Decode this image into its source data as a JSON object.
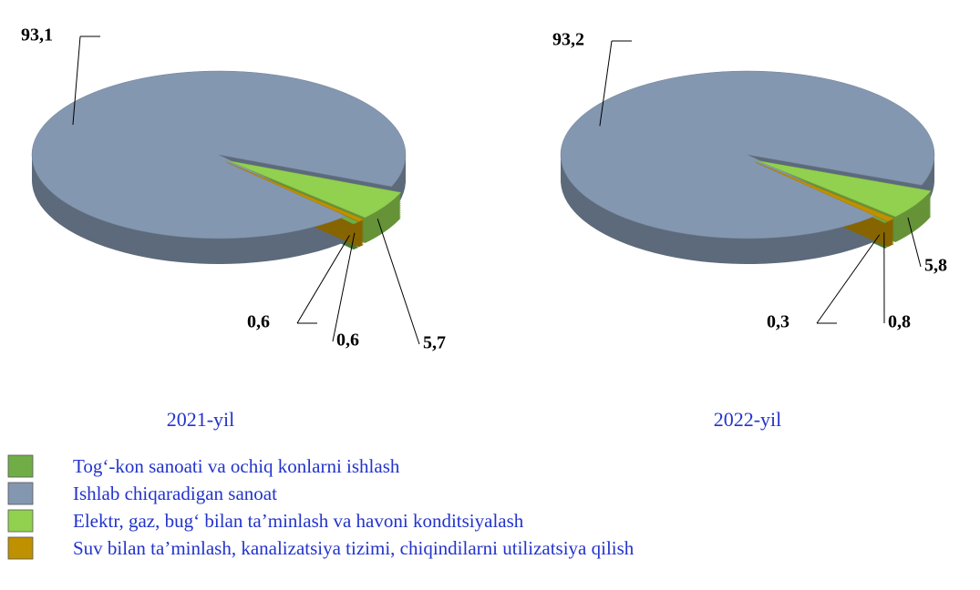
{
  "chart_data": {
    "type": "pie",
    "categories": [
      "Tog‘-kon sanoati va ochiq konlarni ishlash",
      "Ishlab chiqaradigan sanoat",
      "Elektr, gaz, bug‘ bilan ta’minlash va havoni konditsiyalash",
      "Suv bilan ta’minlash, kanalizatsiya tizimi, chiqindilarni utilizatsiya qilish"
    ],
    "colors": [
      "#70ad47",
      "#8497b0",
      "#92d050",
      "#bf9000"
    ],
    "series": [
      {
        "name": "2021-yil",
        "values": [
          0.6,
          93.1,
          5.7,
          0.6
        ],
        "value_labels": [
          "0,6",
          "93,1",
          "5,7",
          "0,6"
        ]
      },
      {
        "name": "2022-yil",
        "values": [
          0.3,
          93.2,
          5.8,
          0.8
        ],
        "value_labels": [
          "0,3",
          "93,2",
          "5,8",
          "0,8"
        ]
      }
    ],
    "legend": "bottom-left"
  }
}
